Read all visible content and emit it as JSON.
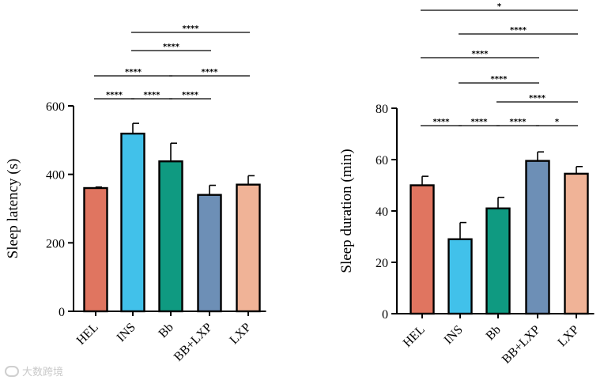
{
  "chart_data": [
    {
      "type": "bar",
      "ylabel": "Sleep latency (s)",
      "categories": [
        "HEL",
        "INS",
        "Bb",
        "BB+LXP",
        "LXP"
      ],
      "values": [
        360,
        519,
        438,
        340,
        370
      ],
      "errors": [
        3,
        30,
        53,
        28,
        26
      ],
      "colors": [
        "#e07560",
        "#41c1ea",
        "#0f9a81",
        "#6d8fb6",
        "#f0b397"
      ],
      "ylim": [
        0,
        600
      ],
      "yticks": [
        0,
        200,
        400,
        600
      ],
      "significance": [
        {
          "from": 0,
          "to": 1,
          "label": "****"
        },
        {
          "from": 1,
          "to": 2,
          "label": "****"
        },
        {
          "from": 2,
          "to": 3,
          "label": "****"
        },
        {
          "from": 0,
          "to": 2,
          "label": "****"
        },
        {
          "from": 2,
          "to": 4,
          "label": "****"
        },
        {
          "from": 1,
          "to": 3,
          "label": "****"
        },
        {
          "from": 1,
          "to": 4,
          "label": "****"
        }
      ]
    },
    {
      "type": "bar",
      "ylabel": "Sleep duration (min)",
      "categories": [
        "HEL",
        "INS",
        "Bb",
        "BB+LXP",
        "LXP"
      ],
      "values": [
        50,
        29,
        41,
        59.5,
        54.5
      ],
      "errors": [
        3.5,
        6.5,
        4.3,
        3.5,
        2.8
      ],
      "colors": [
        "#e07560",
        "#41c1ea",
        "#0f9a81",
        "#6d8fb6",
        "#f0b397"
      ],
      "ylim": [
        0,
        80
      ],
      "yticks": [
        0,
        20,
        40,
        60,
        80
      ],
      "significance": [
        {
          "from": 0,
          "to": 1,
          "label": "****"
        },
        {
          "from": 1,
          "to": 2,
          "label": "****"
        },
        {
          "from": 2,
          "to": 3,
          "label": "****"
        },
        {
          "from": 3,
          "to": 4,
          "label": "*"
        },
        {
          "from": 2,
          "to": 4,
          "label": "****"
        },
        {
          "from": 1,
          "to": 3,
          "label": "****"
        },
        {
          "from": 0,
          "to": 3,
          "label": "****"
        },
        {
          "from": 1,
          "to": 4,
          "label": "****"
        },
        {
          "from": 0,
          "to": 4,
          "label": "*"
        }
      ]
    }
  ],
  "watermark": {
    "text": "大数跨境",
    "icon": "logo-icon"
  }
}
